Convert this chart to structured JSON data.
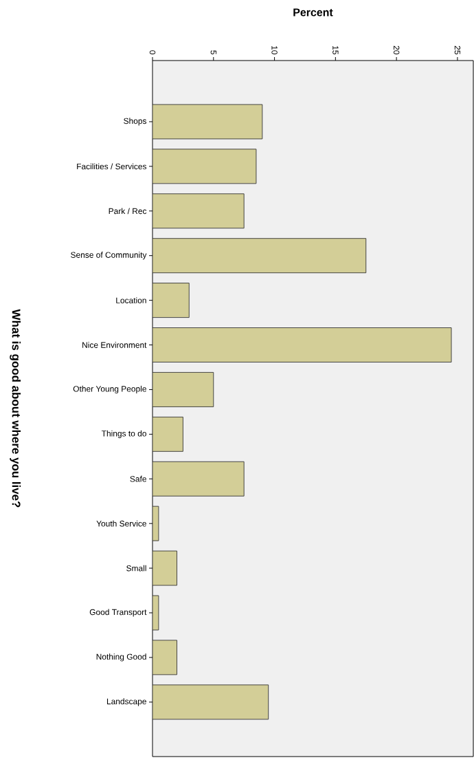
{
  "chart_data": {
    "type": "bar",
    "orientation": "horizontal",
    "xlabel": "Percent",
    "ylabel": "What is good about where you live?",
    "categories": [
      "Shops",
      "Facilities / Services",
      "Park / Rec",
      "Sense of Community",
      "Location",
      "Nice Environment",
      "Other Young People",
      "Things to do",
      "Safe",
      "Youth Service",
      "Small",
      "Good Transport",
      "Nothing Good",
      "Landscape"
    ],
    "values": [
      9.0,
      8.5,
      7.5,
      17.5,
      3.0,
      24.5,
      5.0,
      2.5,
      7.5,
      0.5,
      2.0,
      0.5,
      2.0,
      9.5
    ],
    "color": "#d3ce97",
    "xlim": [
      0,
      26.3
    ],
    "xticks": [
      0,
      5,
      10,
      15,
      20,
      25
    ],
    "grid": false
  }
}
